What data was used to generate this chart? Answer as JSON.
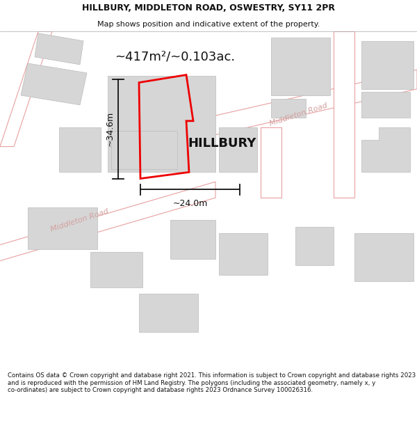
{
  "title": "HILLBURY, MIDDLETON ROAD, OSWESTRY, SY11 2PR",
  "subtitle": "Map shows position and indicative extent of the property.",
  "footer": "Contains OS data © Crown copyright and database right 2021. This information is subject to Crown copyright and database rights 2023 and is reproduced with the permission of HM Land Registry. The polygons (including the associated geometry, namely x, y co-ordinates) are subject to Crown copyright and database rights 2023 Ordnance Survey 100026316.",
  "area_label": "~417m²/~0.103ac.",
  "property_label": "HILLBURY",
  "dim_width": "~24.0m",
  "dim_height": "~34.6m",
  "map_bg": "#f7f0f0",
  "road_fill": "#ffffff",
  "building_fill": "#d6d6d6",
  "road_line_color": "#e8a0a0",
  "property_outline_color": "#ee0000",
  "dim_line_color": "#111111",
  "title_color": "#111111",
  "footer_color": "#111111",
  "title_fontsize": 9.0,
  "subtitle_fontsize": 8.0,
  "footer_fontsize": 6.2
}
